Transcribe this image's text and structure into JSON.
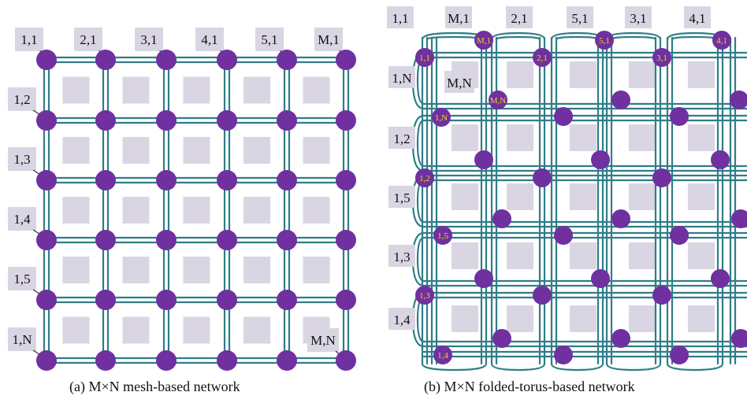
{
  "mesh": {
    "caption": "(a) M×N mesh-based network",
    "top_labels": [
      "1,1",
      "2,1",
      "3,1",
      "4,1",
      "5,1",
      "M,1"
    ],
    "left_labels": [
      "1,2",
      "1,3",
      "1,4",
      "1,5",
      "1,N"
    ],
    "corner_label": "M,N"
  },
  "torus": {
    "caption": "(b) M×N folded-torus-based network",
    "top_labels": [
      "1,1",
      "M,1",
      "2,1",
      "5,1",
      "3,1",
      "4,1"
    ],
    "left_labels": [
      "1,N",
      "1,2",
      "1,5",
      "1,3",
      "1,4"
    ],
    "inner_label": "M,N",
    "node_labels": [
      "M,1",
      "5,1",
      "4,1",
      "1,1",
      "2,1",
      "3,1",
      "M,N",
      "1,N",
      "1,2",
      "1,5",
      "1,3",
      "1,4"
    ]
  },
  "colors": {
    "node": "#7030a0",
    "link": "#2e7d88",
    "tile": "#dad5e3",
    "node_label": "#f2d21c"
  }
}
